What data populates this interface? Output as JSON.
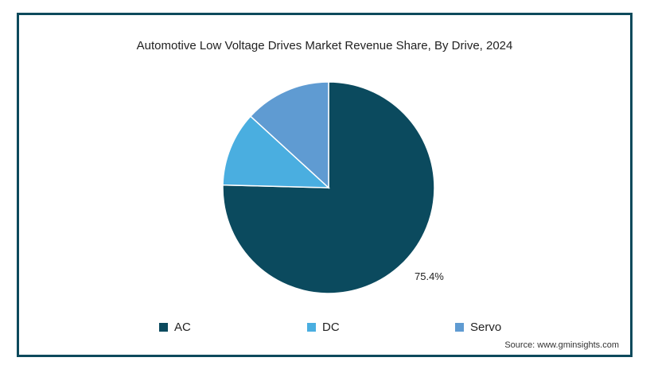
{
  "chart_data": {
    "type": "pie",
    "title": "Automotive Low Voltage Drives Market Revenue Share, By Drive, 2024",
    "slices": [
      {
        "name": "AC",
        "value": 75.4,
        "label": "75.4%",
        "color": "#0b4a5e"
      },
      {
        "name": "DC",
        "value": 11.4,
        "label": "",
        "color": "#4aaee0"
      },
      {
        "name": "Servo",
        "value": 13.2,
        "label": "",
        "color": "#5f9bd2"
      }
    ],
    "legend_position": "bottom"
  },
  "source": "Source: www.gminsights.com"
}
